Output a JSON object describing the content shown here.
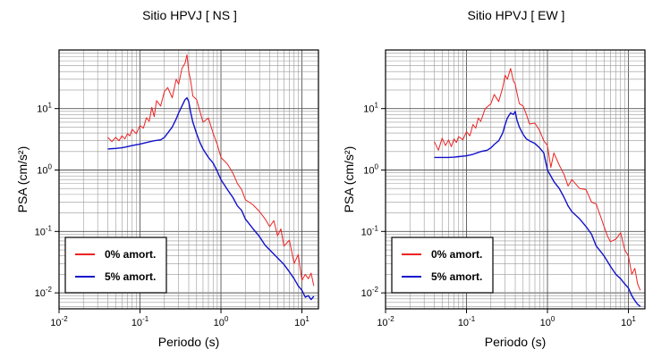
{
  "chart_data": [
    {
      "type": "line",
      "title": "Sitio HPVJ [ NS ]",
      "xlabel": "Periodo (s)",
      "ylabel": "PSA (cm/s²)",
      "xscale": "log",
      "yscale": "log",
      "xlim": [
        0.01,
        16
      ],
      "ylim": [
        0.0055,
        90
      ],
      "xticks": [
        {
          "base": "10",
          "exp": "-2"
        },
        {
          "base": "10",
          "exp": "-1"
        },
        {
          "base": "10",
          "exp": "0"
        },
        {
          "base": "10",
          "exp": "1"
        }
      ],
      "yticks": [
        {
          "base": "10",
          "exp": "-2"
        },
        {
          "base": "10",
          "exp": "-1"
        },
        {
          "base": "10",
          "exp": "0"
        },
        {
          "base": "10",
          "exp": "1"
        }
      ],
      "grid": true,
      "legend_position": "bottom-left",
      "series": [
        {
          "name": "0% amort.",
          "color": "#ee2222",
          "x": [
            0.04,
            0.045,
            0.05,
            0.055,
            0.06,
            0.065,
            0.07,
            0.075,
            0.08,
            0.09,
            0.1,
            0.11,
            0.12,
            0.13,
            0.14,
            0.15,
            0.16,
            0.18,
            0.2,
            0.22,
            0.25,
            0.28,
            0.3,
            0.33,
            0.36,
            0.38,
            0.4,
            0.42,
            0.45,
            0.5,
            0.55,
            0.6,
            0.7,
            0.8,
            0.9,
            1.0,
            1.2,
            1.4,
            1.6,
            1.8,
            2.0,
            2.5,
            3.0,
            3.5,
            4.0,
            4.5,
            5.0,
            5.5,
            6.0,
            7.0,
            8.0,
            9.0,
            10.0,
            11.0,
            12.0,
            13.0,
            14.0
          ],
          "values": [
            3.4,
            2.9,
            3.4,
            3.0,
            3.6,
            3.2,
            3.9,
            3.6,
            4.6,
            3.9,
            5.3,
            4.8,
            7.1,
            6.2,
            10.5,
            7.4,
            13.5,
            11.0,
            19.0,
            22.0,
            15.0,
            30.0,
            25.0,
            45.0,
            55.0,
            75.0,
            40.0,
            30.0,
            16.0,
            14.0,
            9.0,
            6.0,
            7.0,
            4.0,
            2.6,
            1.6,
            1.25,
            0.9,
            0.6,
            0.48,
            0.33,
            0.27,
            0.21,
            0.16,
            0.12,
            0.15,
            0.085,
            0.11,
            0.058,
            0.072,
            0.03,
            0.042,
            0.016,
            0.02,
            0.017,
            0.021,
            0.013
          ]
        },
        {
          "name": "5% amort.",
          "color": "#1111cc",
          "x": [
            0.04,
            0.05,
            0.06,
            0.07,
            0.08,
            0.1,
            0.12,
            0.15,
            0.18,
            0.2,
            0.22,
            0.25,
            0.28,
            0.3,
            0.33,
            0.36,
            0.38,
            0.4,
            0.42,
            0.45,
            0.5,
            0.55,
            0.6,
            0.7,
            0.8,
            0.9,
            1.0,
            1.2,
            1.4,
            1.6,
            1.8,
            2.0,
            2.5,
            3.0,
            3.5,
            4.0,
            5.0,
            6.0,
            7.0,
            8.0,
            9.0,
            10.0,
            11.0,
            12.0,
            13.0,
            14.0
          ],
          "values": [
            2.2,
            2.25,
            2.3,
            2.4,
            2.5,
            2.65,
            2.8,
            3.0,
            3.1,
            3.4,
            4.0,
            5.0,
            6.8,
            8.5,
            11.0,
            14.0,
            15.0,
            13.0,
            9.0,
            6.0,
            3.9,
            2.8,
            2.2,
            1.6,
            1.3,
            0.95,
            0.7,
            0.48,
            0.36,
            0.26,
            0.22,
            0.16,
            0.11,
            0.082,
            0.06,
            0.05,
            0.037,
            0.029,
            0.022,
            0.017,
            0.013,
            0.011,
            0.0085,
            0.009,
            0.0078,
            0.0088
          ]
        }
      ]
    },
    {
      "type": "line",
      "title": "Sitio HPVJ [ EW ]",
      "xlabel": "Periodo (s)",
      "ylabel": "PSA (cm/s²)",
      "xscale": "log",
      "yscale": "log",
      "xlim": [
        0.01,
        16
      ],
      "ylim": [
        0.0055,
        90
      ],
      "xticks": [
        {
          "base": "10",
          "exp": "-2"
        },
        {
          "base": "10",
          "exp": "-1"
        },
        {
          "base": "10",
          "exp": "0"
        },
        {
          "base": "10",
          "exp": "1"
        }
      ],
      "yticks": [
        {
          "base": "10",
          "exp": "-2"
        },
        {
          "base": "10",
          "exp": "-1"
        },
        {
          "base": "10",
          "exp": "0"
        },
        {
          "base": "10",
          "exp": "1"
        }
      ],
      "grid": true,
      "legend_position": "bottom-left",
      "series": [
        {
          "name": "0% amort.",
          "color": "#ee2222",
          "x": [
            0.04,
            0.045,
            0.05,
            0.055,
            0.06,
            0.065,
            0.07,
            0.075,
            0.08,
            0.09,
            0.1,
            0.11,
            0.12,
            0.13,
            0.14,
            0.15,
            0.17,
            0.2,
            0.22,
            0.25,
            0.28,
            0.3,
            0.32,
            0.35,
            0.38,
            0.4,
            0.42,
            0.45,
            0.5,
            0.55,
            0.6,
            0.7,
            0.8,
            0.9,
            1.0,
            1.1,
            1.2,
            1.4,
            1.6,
            1.8,
            2.0,
            2.5,
            3.0,
            3.5,
            4.0,
            4.5,
            5.0,
            5.5,
            6.0,
            7.0,
            8.0,
            9.0,
            10.0,
            11.0,
            12.0,
            13.0,
            14.0
          ],
          "values": [
            2.9,
            2.1,
            3.3,
            2.5,
            3.1,
            2.4,
            3.2,
            2.8,
            3.5,
            3.1,
            4.2,
            3.6,
            5.5,
            4.8,
            7.0,
            6.2,
            10.0,
            12.0,
            17.0,
            13.0,
            22.0,
            35.0,
            30.0,
            45.0,
            28.0,
            25.0,
            18.0,
            12.0,
            11.0,
            8.0,
            5.6,
            5.8,
            4.4,
            3.0,
            2.5,
            1.1,
            1.9,
            1.2,
            0.85,
            0.55,
            0.7,
            0.5,
            0.48,
            0.3,
            0.28,
            0.18,
            0.12,
            0.085,
            0.068,
            0.075,
            0.095,
            0.05,
            0.04,
            0.02,
            0.025,
            0.014,
            0.011
          ]
        },
        {
          "name": "5% amort.",
          "color": "#1111cc",
          "x": [
            0.04,
            0.05,
            0.06,
            0.07,
            0.08,
            0.1,
            0.12,
            0.15,
            0.18,
            0.2,
            0.22,
            0.25,
            0.28,
            0.3,
            0.32,
            0.35,
            0.38,
            0.4,
            0.42,
            0.45,
            0.5,
            0.55,
            0.6,
            0.7,
            0.8,
            0.9,
            1.0,
            1.2,
            1.4,
            1.6,
            1.8,
            2.0,
            2.5,
            3.0,
            3.5,
            4.0,
            5.0,
            6.0,
            7.0,
            8.0,
            9.0,
            10.0,
            11.0,
            12.0,
            13.0,
            14.0
          ],
          "values": [
            1.6,
            1.6,
            1.6,
            1.62,
            1.65,
            1.7,
            1.8,
            2.0,
            2.1,
            2.3,
            2.6,
            3.0,
            4.0,
            5.5,
            7.0,
            8.5,
            8.0,
            9.0,
            6.5,
            5.0,
            3.8,
            3.2,
            3.0,
            2.7,
            2.3,
            1.9,
            1.0,
            0.65,
            0.5,
            0.36,
            0.26,
            0.21,
            0.16,
            0.12,
            0.09,
            0.058,
            0.04,
            0.027,
            0.02,
            0.017,
            0.014,
            0.012,
            0.009,
            0.0075,
            0.0065,
            0.006
          ]
        }
      ]
    }
  ]
}
